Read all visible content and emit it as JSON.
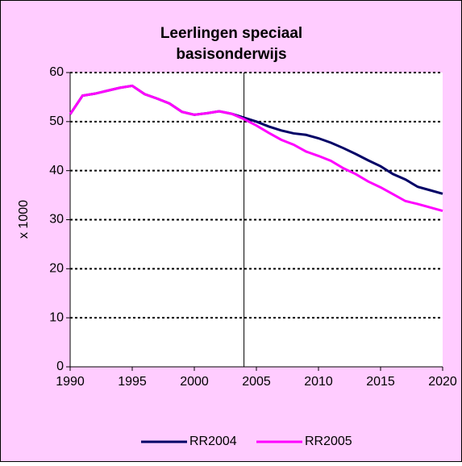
{
  "chart_data": {
    "type": "line",
    "title": [
      "Leerlingen speciaal",
      "basisonderwijs"
    ],
    "y_label": "x 1000",
    "x": [
      1990,
      1991,
      1992,
      1993,
      1994,
      1995,
      1996,
      1997,
      1998,
      1999,
      2000,
      2001,
      2002,
      2003,
      2004,
      2005,
      2006,
      2007,
      2008,
      2009,
      2010,
      2011,
      2012,
      2013,
      2014,
      2015,
      2016,
      2017,
      2018,
      2019,
      2020
    ],
    "series": [
      {
        "name": "RR2004",
        "color": "#000066",
        "values": [
          51.5,
          55.3,
          55.7,
          56.3,
          56.9,
          57.3,
          55.6,
          54.7,
          53.7,
          52.0,
          51.4,
          51.7,
          52.1,
          51.6,
          50.8,
          50.0,
          49.0,
          48.2,
          47.6,
          47.3,
          46.6,
          45.7,
          44.6,
          43.4,
          42.1,
          40.9,
          39.3,
          38.2,
          36.7,
          36.0,
          35.3
        ]
      },
      {
        "name": "RR2005",
        "color": "#ff00ff",
        "values": [
          51.5,
          55.3,
          55.7,
          56.3,
          56.9,
          57.3,
          55.6,
          54.7,
          53.7,
          52.0,
          51.4,
          51.7,
          52.1,
          51.6,
          50.5,
          49.2,
          47.7,
          46.3,
          45.3,
          43.9,
          43.0,
          42.0,
          40.5,
          39.3,
          37.8,
          36.6,
          35.2,
          33.8,
          33.2,
          32.5,
          31.8
        ]
      }
    ],
    "xlim": [
      1990,
      2020
    ],
    "xticks": [
      1990,
      1995,
      2000,
      2005,
      2010,
      2015,
      2020
    ],
    "ylim": [
      0,
      60
    ],
    "yticks": [
      0,
      10,
      20,
      30,
      40,
      50,
      60
    ],
    "vline": 2004,
    "grid": true,
    "legend": "bottom"
  }
}
